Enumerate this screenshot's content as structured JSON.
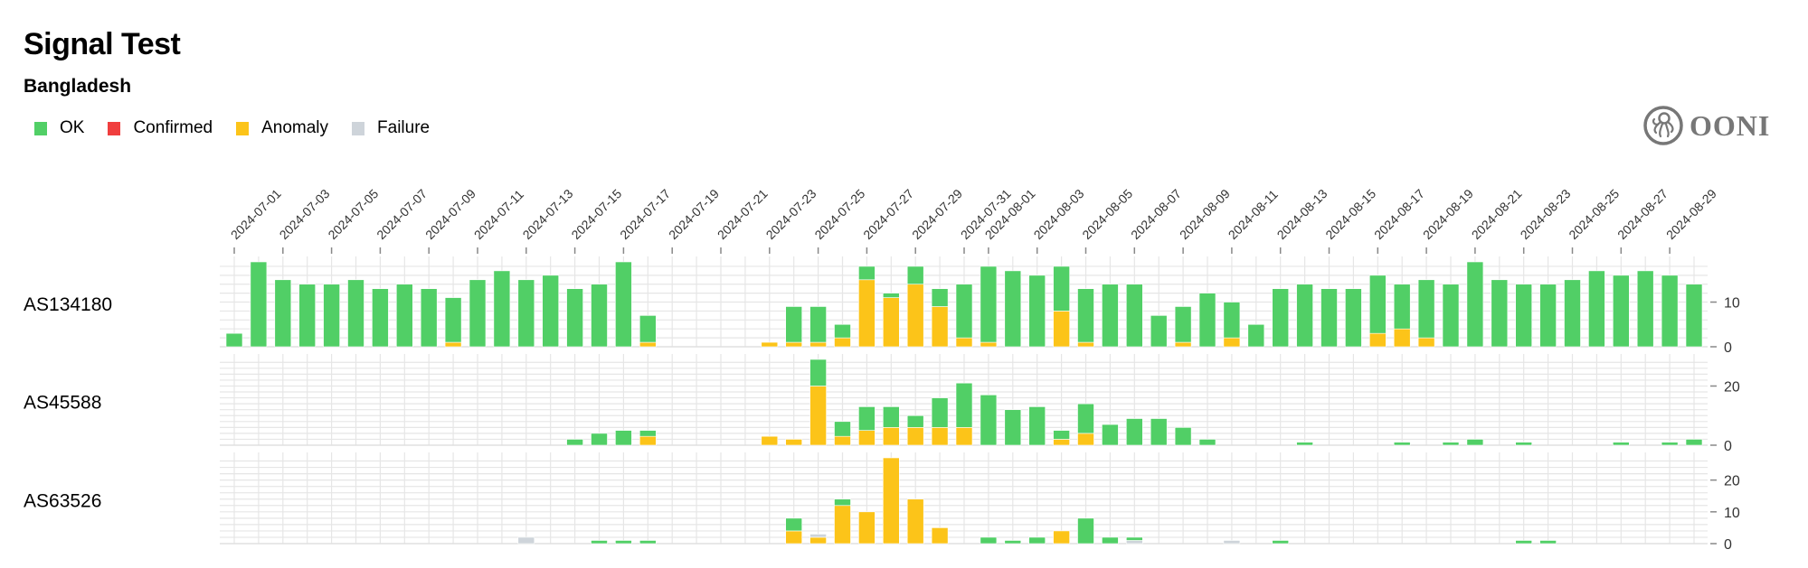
{
  "title": "Signal Test",
  "subtitle": "Bangladesh",
  "legend": [
    {
      "label": "OK",
      "key": "ok",
      "color": "#51cf66"
    },
    {
      "label": "Confirmed",
      "key": "confirmed",
      "color": "#f03e3e"
    },
    {
      "label": "Anomaly",
      "key": "anomaly",
      "color": "#fcc419"
    },
    {
      "label": "Failure",
      "key": "failure",
      "color": "#ced4da"
    }
  ],
  "logo": {
    "text": "OONI",
    "icon": "octopus-icon",
    "color": "#777777"
  },
  "chart_data": {
    "type": "bar",
    "stacked": true,
    "stack_order": [
      "anomaly",
      "confirmed",
      "failure",
      "ok"
    ],
    "grid": true,
    "legend_placement": "top-left",
    "x_tick_labels": [
      "2024-07-01",
      "2024-07-03",
      "2024-07-05",
      "2024-07-07",
      "2024-07-09",
      "2024-07-11",
      "2024-07-13",
      "2024-07-15",
      "2024-07-17",
      "2024-07-19",
      "2024-07-21",
      "2024-07-23",
      "2024-07-25",
      "2024-07-27",
      "2024-07-29",
      "2024-07-31",
      "2024-08-01",
      "2024-08-03",
      "2024-08-05",
      "2024-08-07",
      "2024-08-09",
      "2024-08-11",
      "2024-08-13",
      "2024-08-15",
      "2024-08-17",
      "2024-08-19",
      "2024-08-21",
      "2024-08-23",
      "2024-08-25",
      "2024-08-27",
      "2024-08-29"
    ],
    "dates": [
      "2024-07-01",
      "2024-07-02",
      "2024-07-03",
      "2024-07-04",
      "2024-07-05",
      "2024-07-06",
      "2024-07-07",
      "2024-07-08",
      "2024-07-09",
      "2024-07-10",
      "2024-07-11",
      "2024-07-12",
      "2024-07-13",
      "2024-07-14",
      "2024-07-15",
      "2024-07-16",
      "2024-07-17",
      "2024-07-18",
      "2024-07-19",
      "2024-07-20",
      "2024-07-21",
      "2024-07-22",
      "2024-07-23",
      "2024-07-24",
      "2024-07-25",
      "2024-07-26",
      "2024-07-27",
      "2024-07-28",
      "2024-07-29",
      "2024-07-30",
      "2024-07-31",
      "2024-08-01",
      "2024-08-02",
      "2024-08-03",
      "2024-08-04",
      "2024-08-05",
      "2024-08-06",
      "2024-08-07",
      "2024-08-08",
      "2024-08-09",
      "2024-08-10",
      "2024-08-11",
      "2024-08-12",
      "2024-08-13",
      "2024-08-14",
      "2024-08-15",
      "2024-08-16",
      "2024-08-17",
      "2024-08-18",
      "2024-08-19",
      "2024-08-20",
      "2024-08-21",
      "2024-08-22",
      "2024-08-23",
      "2024-08-24",
      "2024-08-25",
      "2024-08-26",
      "2024-08-27",
      "2024-08-28",
      "2024-08-29",
      "2024-08-30"
    ],
    "rows": [
      {
        "name": "AS134180",
        "ylim": [
          0,
          19
        ],
        "y_ticks": [
          0,
          10
        ],
        "ok": [
          3,
          19,
          15,
          14,
          14,
          15,
          13,
          14,
          13,
          10,
          15,
          17,
          15,
          16,
          13,
          14,
          19,
          6,
          0,
          0,
          0,
          0,
          0,
          8,
          8,
          3,
          3,
          1,
          4,
          4,
          12,
          17,
          17,
          16,
          10,
          12,
          14,
          14,
          7,
          8,
          12,
          8,
          5,
          13,
          14,
          13,
          13,
          13,
          10,
          13,
          14,
          19,
          15,
          14,
          14,
          15,
          17,
          16,
          17,
          16,
          14
        ],
        "anomaly": [
          0,
          0,
          0,
          0,
          0,
          0,
          0,
          0,
          0,
          1,
          0,
          0,
          0,
          0,
          0,
          0,
          0,
          1,
          0,
          0,
          0,
          0,
          1,
          1,
          1,
          2,
          15,
          11,
          14,
          9,
          2,
          1,
          0,
          0,
          8,
          1,
          0,
          0,
          0,
          1,
          0,
          2,
          0,
          0,
          0,
          0,
          0,
          3,
          4,
          2,
          0,
          0,
          0,
          0,
          0,
          0,
          0,
          0,
          0,
          0,
          0
        ],
        "failure": [],
        "confirmed": []
      },
      {
        "name": "AS45588",
        "ylim": [
          0,
          29
        ],
        "y_ticks": [
          0,
          20
        ],
        "ok": [
          0,
          0,
          0,
          0,
          0,
          0,
          0,
          0,
          0,
          0,
          0,
          0,
          0,
          0,
          2,
          4,
          5,
          2,
          0,
          0,
          0,
          0,
          0,
          0,
          9,
          5,
          8,
          7,
          4,
          10,
          15,
          17,
          12,
          13,
          3,
          10,
          7,
          9,
          9,
          6,
          2,
          0,
          0,
          0,
          1,
          0,
          0,
          0,
          1,
          0,
          1,
          2,
          0,
          1,
          0,
          0,
          0,
          1,
          0,
          1,
          2
        ],
        "anomaly": [
          0,
          0,
          0,
          0,
          0,
          0,
          0,
          0,
          0,
          0,
          0,
          0,
          0,
          0,
          0,
          0,
          0,
          3,
          0,
          0,
          0,
          0,
          3,
          2,
          20,
          3,
          5,
          6,
          6,
          6,
          6,
          0,
          0,
          0,
          2,
          4,
          0,
          0,
          0,
          0,
          0,
          0,
          0,
          0,
          0,
          0,
          0,
          0,
          0,
          0,
          0,
          0,
          0,
          0,
          0,
          0,
          0,
          0,
          0,
          0,
          0
        ],
        "failure": [],
        "confirmed": []
      },
      {
        "name": "AS63526",
        "ylim": [
          0,
          27
        ],
        "y_ticks": [
          0,
          10,
          20
        ],
        "ok": [
          0,
          0,
          0,
          0,
          0,
          0,
          0,
          0,
          0,
          0,
          0,
          0,
          0,
          0,
          0,
          1,
          1,
          1,
          0,
          0,
          0,
          0,
          0,
          4,
          0,
          2,
          0,
          0,
          0,
          0,
          0,
          2,
          1,
          2,
          0,
          8,
          2,
          1,
          0,
          0,
          0,
          0,
          0,
          1,
          0,
          0,
          0,
          0,
          0,
          0,
          0,
          0,
          0,
          1,
          1,
          0,
          0,
          0,
          0,
          0,
          0
        ],
        "anomaly": [
          0,
          0,
          0,
          0,
          0,
          0,
          0,
          0,
          0,
          0,
          0,
          0,
          0,
          0,
          0,
          0,
          0,
          0,
          0,
          0,
          0,
          0,
          0,
          4,
          2,
          12,
          10,
          27,
          14,
          5,
          0,
          0,
          0,
          0,
          4,
          0,
          0,
          0,
          0,
          0,
          0,
          0,
          0,
          0,
          0,
          0,
          0,
          0,
          0,
          0,
          0,
          0,
          0,
          0,
          0,
          0,
          0,
          0,
          0,
          0,
          0
        ],
        "failure": [
          0,
          0,
          0,
          0,
          0,
          0,
          0,
          0,
          0,
          0,
          0,
          0,
          2,
          0,
          0,
          0,
          0,
          0,
          0,
          0,
          0,
          0,
          0,
          0,
          1,
          0,
          0,
          0,
          0,
          0,
          0,
          0,
          0,
          0,
          0,
          0,
          0,
          1,
          0,
          0,
          0,
          1,
          0,
          0,
          0,
          0,
          0,
          0,
          0,
          0,
          0,
          0,
          0,
          0,
          0,
          0,
          0,
          0,
          0,
          0,
          0
        ],
        "confirmed": []
      }
    ]
  }
}
